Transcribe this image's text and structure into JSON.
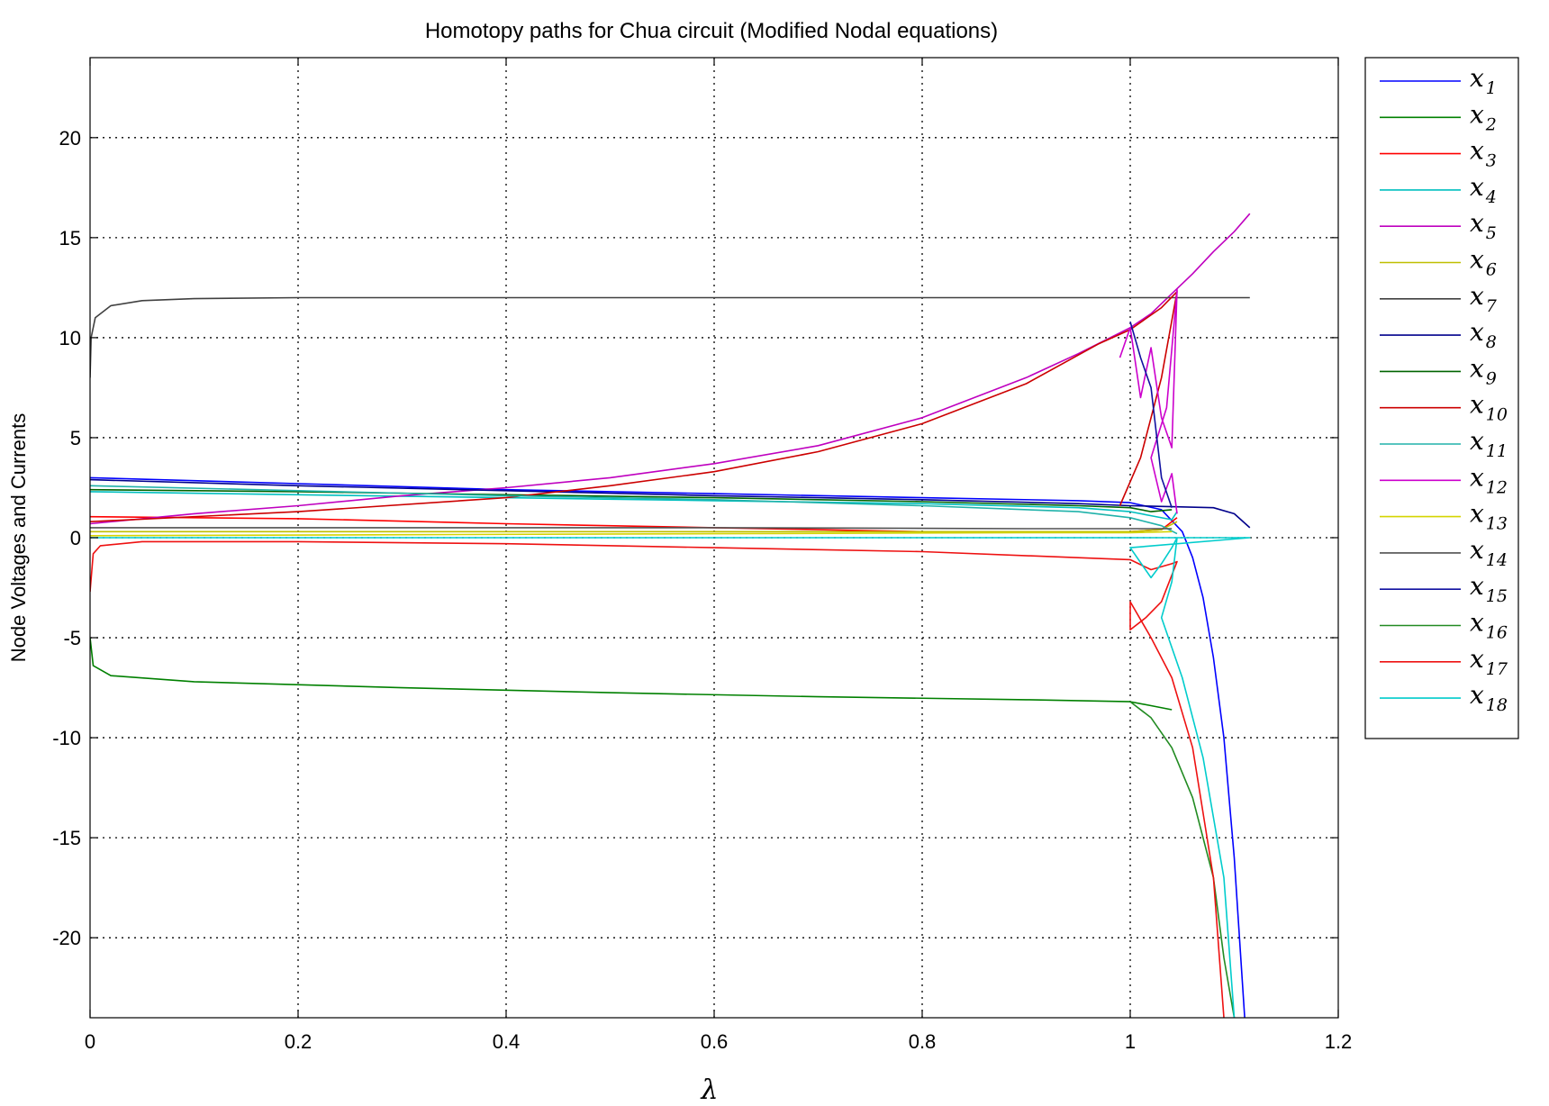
{
  "chart_data": {
    "type": "line",
    "title": "Homotopy paths for Chua circuit (Modified Nodal equations)",
    "xlabel": "λ",
    "ylabel": "Node Voltages and Currents",
    "xlim": [
      0,
      1.2
    ],
    "ylim": [
      -24,
      24
    ],
    "xticks": [
      0,
      0.2,
      0.4,
      0.6,
      0.8,
      1,
      1.2
    ],
    "xtick_labels": [
      "0",
      "0.2",
      "0.4",
      "0.6",
      "0.8",
      "1",
      "1.2"
    ],
    "yticks": [
      -20,
      -15,
      -10,
      -5,
      0,
      5,
      10,
      15,
      20
    ],
    "ytick_labels": [
      "-20",
      "-15",
      "-10",
      "-5",
      "0",
      "5",
      "10",
      "15",
      "20"
    ],
    "grid": true,
    "legend_position": "outside-right",
    "series": [
      {
        "name": "x",
        "sub": "1",
        "color": "#0000ff",
        "points": [
          [
            0,
            3.0
          ],
          [
            0.2,
            2.7
          ],
          [
            0.4,
            2.4
          ],
          [
            0.6,
            2.2
          ],
          [
            0.8,
            2.0
          ],
          [
            0.95,
            1.85
          ],
          [
            1.0,
            1.75
          ],
          [
            1.03,
            1.4
          ],
          [
            1.05,
            0.3
          ],
          [
            1.06,
            -1
          ],
          [
            1.07,
            -3
          ],
          [
            1.08,
            -6
          ],
          [
            1.09,
            -10
          ],
          [
            1.1,
            -16
          ],
          [
            1.105,
            -20
          ],
          [
            1.11,
            -24
          ]
        ]
      },
      {
        "name": "x",
        "sub": "2",
        "color": "#008000",
        "points": [
          [
            0,
            -5.0
          ],
          [
            0.003,
            -6.4
          ],
          [
            0.02,
            -6.9
          ],
          [
            0.1,
            -7.2
          ],
          [
            0.3,
            -7.5
          ],
          [
            0.5,
            -7.75
          ],
          [
            0.7,
            -7.95
          ],
          [
            0.9,
            -8.1
          ],
          [
            1.0,
            -8.2
          ],
          [
            1.02,
            -8.4
          ],
          [
            1.04,
            -8.6
          ]
        ]
      },
      {
        "name": "x",
        "sub": "3",
        "color": "#ff0000",
        "points": [
          [
            0,
            1.05
          ],
          [
            0.2,
            0.95
          ],
          [
            0.4,
            0.7
          ],
          [
            0.6,
            0.5
          ],
          [
            0.8,
            0.3
          ],
          [
            1.0,
            0.3
          ],
          [
            1.03,
            0.4
          ],
          [
            1.045,
            1.0
          ]
        ]
      },
      {
        "name": "x",
        "sub": "4",
        "color": "#00bfbf",
        "points": [
          [
            0,
            2.3
          ],
          [
            0.2,
            2.15
          ],
          [
            0.4,
            2.0
          ],
          [
            0.6,
            1.85
          ],
          [
            0.8,
            1.7
          ],
          [
            0.95,
            1.5
          ],
          [
            1.0,
            1.3
          ],
          [
            1.02,
            1.1
          ],
          [
            1.04,
            0.9
          ],
          [
            1.045,
            1.3
          ]
        ]
      },
      {
        "name": "x",
        "sub": "5",
        "color": "#bf00bf",
        "points": [
          [
            0,
            0.7
          ],
          [
            0.1,
            1.2
          ],
          [
            0.2,
            1.6
          ],
          [
            0.3,
            2.1
          ],
          [
            0.4,
            2.5
          ],
          [
            0.5,
            3.0
          ],
          [
            0.6,
            3.7
          ],
          [
            0.7,
            4.6
          ],
          [
            0.8,
            6.0
          ],
          [
            0.9,
            8.0
          ],
          [
            0.95,
            9.2
          ],
          [
            1.0,
            10.5
          ],
          [
            1.02,
            11.2
          ],
          [
            1.04,
            12.2
          ],
          [
            1.06,
            13.2
          ],
          [
            1.08,
            14.3
          ],
          [
            1.1,
            15.3
          ],
          [
            1.115,
            16.2
          ]
        ]
      },
      {
        "name": "x",
        "sub": "6",
        "color": "#bfbf00",
        "points": [
          [
            0,
            0.3
          ],
          [
            0.3,
            0.3
          ],
          [
            0.6,
            0.3
          ],
          [
            0.9,
            0.3
          ],
          [
            1.0,
            0.3
          ],
          [
            1.03,
            0.4
          ],
          [
            1.045,
            0.8
          ]
        ]
      },
      {
        "name": "x",
        "sub": "7",
        "color": "#404040",
        "points": [
          [
            0,
            8.0
          ],
          [
            0.001,
            10.0
          ],
          [
            0.005,
            11.0
          ],
          [
            0.02,
            11.6
          ],
          [
            0.05,
            11.85
          ],
          [
            0.1,
            11.95
          ],
          [
            0.2,
            12.0
          ],
          [
            0.5,
            12.0
          ],
          [
            0.8,
            12.0
          ],
          [
            1.0,
            12.0
          ],
          [
            1.115,
            12.0
          ]
        ]
      },
      {
        "name": "x",
        "sub": "8",
        "color": "#00008b",
        "points": [
          [
            0,
            2.9
          ],
          [
            0.2,
            2.6
          ],
          [
            0.4,
            2.35
          ],
          [
            0.6,
            2.1
          ],
          [
            0.8,
            1.9
          ],
          [
            0.95,
            1.7
          ],
          [
            1.0,
            1.6
          ],
          [
            1.04,
            1.55
          ],
          [
            1.08,
            1.5
          ],
          [
            1.1,
            1.2
          ],
          [
            1.115,
            0.5
          ]
        ]
      },
      {
        "name": "x",
        "sub": "9",
        "color": "#006400",
        "points": [
          [
            0,
            2.4
          ],
          [
            0.2,
            2.3
          ],
          [
            0.4,
            2.15
          ],
          [
            0.6,
            2.0
          ],
          [
            0.8,
            1.8
          ],
          [
            0.95,
            1.6
          ],
          [
            1.0,
            1.5
          ],
          [
            1.02,
            1.3
          ],
          [
            1.04,
            1.4
          ]
        ]
      },
      {
        "name": "x",
        "sub": "10",
        "color": "#cc0000",
        "points": [
          [
            0,
            0.8
          ],
          [
            0.2,
            1.3
          ],
          [
            0.4,
            2.0
          ],
          [
            0.5,
            2.6
          ],
          [
            0.6,
            3.3
          ],
          [
            0.7,
            4.3
          ],
          [
            0.8,
            5.7
          ],
          [
            0.9,
            7.7
          ],
          [
            0.97,
            9.7
          ],
          [
            1.0,
            10.4
          ],
          [
            1.03,
            11.5
          ],
          [
            1.045,
            12.3
          ],
          [
            1.03,
            8
          ],
          [
            1.01,
            4
          ],
          [
            0.99,
            1.6
          ]
        ]
      },
      {
        "name": "x",
        "sub": "11",
        "color": "#20b2aa",
        "points": [
          [
            0,
            2.6
          ],
          [
            0.2,
            2.35
          ],
          [
            0.4,
            2.1
          ],
          [
            0.6,
            1.9
          ],
          [
            0.8,
            1.6
          ],
          [
            0.95,
            1.3
          ],
          [
            1.0,
            1.0
          ],
          [
            1.03,
            0.6
          ],
          [
            1.045,
            0.2
          ]
        ]
      },
      {
        "name": "x",
        "sub": "12",
        "color": "#cc00cc",
        "points": [
          [
            0.99,
            9.0
          ],
          [
            1.0,
            10.5
          ],
          [
            1.01,
            7.0
          ],
          [
            1.02,
            9.5
          ],
          [
            1.03,
            6.0
          ],
          [
            1.04,
            4.5
          ],
          [
            1.045,
            12.4
          ],
          [
            1.035,
            6.5
          ],
          [
            1.02,
            4.0
          ],
          [
            1.03,
            1.8
          ],
          [
            1.04,
            3.2
          ],
          [
            1.045,
            1.2
          ]
        ]
      },
      {
        "name": "x",
        "sub": "13",
        "color": "#d4d400",
        "points": [
          [
            0,
            0.1
          ],
          [
            0.3,
            0.15
          ],
          [
            0.6,
            0.2
          ],
          [
            0.9,
            0.25
          ],
          [
            1.0,
            0.25
          ],
          [
            1.04,
            0.3
          ]
        ]
      },
      {
        "name": "x",
        "sub": "14",
        "color": "#505050",
        "points": [
          [
            0,
            0.5
          ],
          [
            0.3,
            0.5
          ],
          [
            0.6,
            0.5
          ],
          [
            0.9,
            0.45
          ],
          [
            1.0,
            0.45
          ],
          [
            1.04,
            0.45
          ]
        ]
      },
      {
        "name": "x",
        "sub": "15",
        "color": "#1010a0",
        "points": [
          [
            1.0,
            10.8
          ],
          [
            1.01,
            9.0
          ],
          [
            1.02,
            7.5
          ],
          [
            1.03,
            3.0
          ],
          [
            1.04,
            1.5
          ]
        ]
      },
      {
        "name": "x",
        "sub": "16",
        "color": "#228b22",
        "points": [
          [
            1.0,
            -8.2
          ],
          [
            1.02,
            -9.0
          ],
          [
            1.04,
            -10.5
          ],
          [
            1.06,
            -13.0
          ],
          [
            1.08,
            -17.0
          ],
          [
            1.09,
            -21.0
          ],
          [
            1.1,
            -24.0
          ]
        ]
      },
      {
        "name": "x",
        "sub": "17",
        "color": "#ee1111",
        "points": [
          [
            0,
            -2.7
          ],
          [
            0.003,
            -0.8
          ],
          [
            0.01,
            -0.4
          ],
          [
            0.05,
            -0.2
          ],
          [
            0.2,
            -0.2
          ],
          [
            0.4,
            -0.3
          ],
          [
            0.6,
            -0.5
          ],
          [
            0.8,
            -0.7
          ],
          [
            0.95,
            -1.0
          ],
          [
            1.0,
            -1.1
          ],
          [
            1.02,
            -1.6
          ],
          [
            1.04,
            -1.3
          ],
          [
            1.045,
            -1.2
          ],
          [
            1.03,
            -3.2
          ],
          [
            1.015,
            -4.0
          ],
          [
            1.0,
            -4.6
          ],
          [
            1.0,
            -3.2
          ],
          [
            1.02,
            -5.0
          ],
          [
            1.04,
            -7.0
          ],
          [
            1.06,
            -10.5
          ],
          [
            1.08,
            -17.0
          ],
          [
            1.09,
            -24.0
          ]
        ]
      },
      {
        "name": "x",
        "sub": "18",
        "color": "#00cccc",
        "points": [
          [
            0,
            0
          ],
          [
            0.2,
            0
          ],
          [
            0.4,
            0
          ],
          [
            0.6,
            0
          ],
          [
            0.8,
            0
          ],
          [
            1.0,
            0
          ],
          [
            1.115,
            0
          ],
          [
            1.0,
            -0.5
          ],
          [
            1.02,
            -2.0
          ],
          [
            1.03,
            -1.3
          ],
          [
            1.04,
            -0.5
          ],
          [
            1.045,
            0.0
          ],
          [
            1.04,
            -2.2
          ],
          [
            1.03,
            -4.0
          ],
          [
            1.05,
            -7.0
          ],
          [
            1.07,
            -11.0
          ],
          [
            1.09,
            -17.0
          ],
          [
            1.1,
            -24.0
          ]
        ]
      }
    ]
  }
}
